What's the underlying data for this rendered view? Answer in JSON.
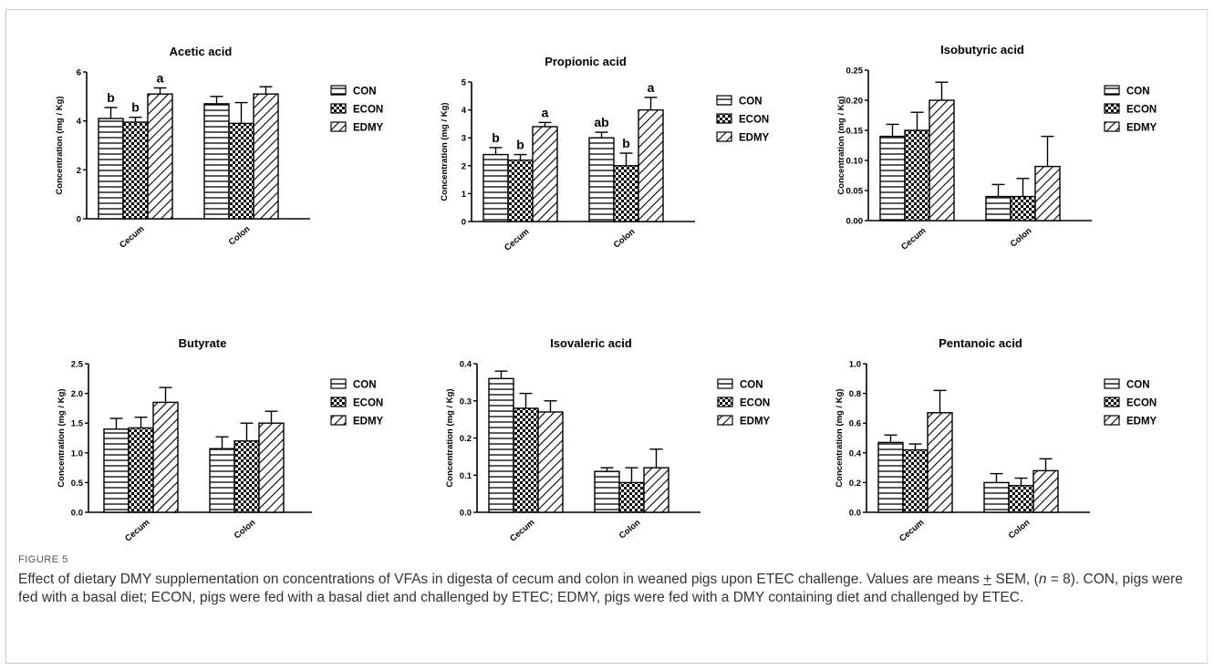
{
  "figure": {
    "label": "FIGURE 5",
    "caption_html": "Effect of dietary DMY supplementation on concentrations of VFAs in digesta of cecum and colon in weaned pigs upon ETEC challenge. Values are means <span style=\"text-decoration:underline\">+</span> SEM, (<i>n</i> = 8). CON, pigs were fed with a basal diet; ECON, pigs were fed with a basal diet and challenged by ETEC; EDMY, pigs were fed with a DMY containing diet and challenged by ETEC."
  },
  "legend": [
    "CON",
    "ECON",
    "EDMY"
  ],
  "chart_data": [
    {
      "type": "bar",
      "title": "Acetic acid",
      "ylabel": "Concentration (mg / Kg)",
      "categories": [
        "Cecum",
        "Colon"
      ],
      "ylim": [
        0,
        6
      ],
      "yticks": [
        "0",
        "2",
        "4",
        "6"
      ],
      "series": [
        {
          "name": "CON",
          "values": [
            4.1,
            4.7
          ],
          "sem": [
            0.45,
            0.3
          ],
          "letters": [
            "b",
            ""
          ]
        },
        {
          "name": "ECON",
          "values": [
            3.95,
            3.9
          ],
          "sem": [
            0.2,
            0.85
          ],
          "letters": [
            "b",
            ""
          ]
        },
        {
          "name": "EDMY",
          "values": [
            5.1,
            5.1
          ],
          "sem": [
            0.25,
            0.3
          ],
          "letters": [
            "a",
            ""
          ]
        }
      ]
    },
    {
      "type": "bar",
      "title": "Propionic acid",
      "ylabel": "Concentration (mg / Kg)",
      "categories": [
        "Cecum",
        "Colon"
      ],
      "ylim": [
        0,
        5
      ],
      "yticks": [
        "0",
        "1",
        "2",
        "3",
        "4",
        "5"
      ],
      "series": [
        {
          "name": "CON",
          "values": [
            2.4,
            3.0
          ],
          "sem": [
            0.25,
            0.2
          ],
          "letters": [
            "b",
            "ab"
          ]
        },
        {
          "name": "ECON",
          "values": [
            2.2,
            2.0
          ],
          "sem": [
            0.2,
            0.45
          ],
          "letters": [
            "b",
            "b"
          ]
        },
        {
          "name": "EDMY",
          "values": [
            3.4,
            4.0
          ],
          "sem": [
            0.15,
            0.45
          ],
          "letters": [
            "a",
            "a"
          ]
        }
      ]
    },
    {
      "type": "bar",
      "title": "Isobutyric acid",
      "ylabel": "Concentration (mg / Kg)",
      "categories": [
        "Cecum",
        "Colon"
      ],
      "ylim": [
        0,
        0.25
      ],
      "yticks": [
        "0.00",
        "0.05",
        "0.10",
        "0.15",
        "0.20",
        "0.25"
      ],
      "series": [
        {
          "name": "CON",
          "values": [
            0.14,
            0.04
          ],
          "sem": [
            0.02,
            0.02
          ]
        },
        {
          "name": "ECON",
          "values": [
            0.15,
            0.04
          ],
          "sem": [
            0.03,
            0.03
          ]
        },
        {
          "name": "EDMY",
          "values": [
            0.2,
            0.09
          ],
          "sem": [
            0.03,
            0.05
          ]
        }
      ]
    },
    {
      "type": "bar",
      "title": "Butyrate",
      "ylabel": "Concentration (mg / Kg)",
      "categories": [
        "Cecum",
        "Colon"
      ],
      "ylim": [
        0,
        2.5
      ],
      "yticks": [
        "0.0",
        "0.5",
        "1.0",
        "1.5",
        "2.0",
        "2.5"
      ],
      "series": [
        {
          "name": "CON",
          "values": [
            1.4,
            1.07
          ],
          "sem": [
            0.18,
            0.2
          ]
        },
        {
          "name": "ECON",
          "values": [
            1.42,
            1.2
          ],
          "sem": [
            0.18,
            0.3
          ]
        },
        {
          "name": "EDMY",
          "values": [
            1.85,
            1.5
          ],
          "sem": [
            0.25,
            0.2
          ]
        }
      ]
    },
    {
      "type": "bar",
      "title": "Isovaleric acid",
      "ylabel": "Concentration (mg / Kg)",
      "categories": [
        "Cecum",
        "Colon"
      ],
      "ylim": [
        0,
        0.4
      ],
      "yticks": [
        "0.0",
        "0.1",
        "0.2",
        "0.3",
        "0.4"
      ],
      "series": [
        {
          "name": "CON",
          "values": [
            0.36,
            0.11
          ],
          "sem": [
            0.02,
            0.01
          ]
        },
        {
          "name": "ECON",
          "values": [
            0.28,
            0.08
          ],
          "sem": [
            0.04,
            0.04
          ]
        },
        {
          "name": "EDMY",
          "values": [
            0.27,
            0.12
          ],
          "sem": [
            0.03,
            0.05
          ]
        }
      ]
    },
    {
      "type": "bar",
      "title": "Pentanoic acid",
      "ylabel": "Concentration (mg / Kg)",
      "categories": [
        "Cecum",
        "Colon"
      ],
      "ylim": [
        0,
        1.0
      ],
      "yticks": [
        "0.0",
        "0.2",
        "0.4",
        "0.6",
        "0.8",
        "1.0"
      ],
      "series": [
        {
          "name": "CON",
          "values": [
            0.47,
            0.2
          ],
          "sem": [
            0.05,
            0.06
          ]
        },
        {
          "name": "ECON",
          "values": [
            0.42,
            0.18
          ],
          "sem": [
            0.04,
            0.05
          ]
        },
        {
          "name": "EDMY",
          "values": [
            0.67,
            0.28
          ],
          "sem": [
            0.15,
            0.08
          ]
        }
      ]
    }
  ]
}
